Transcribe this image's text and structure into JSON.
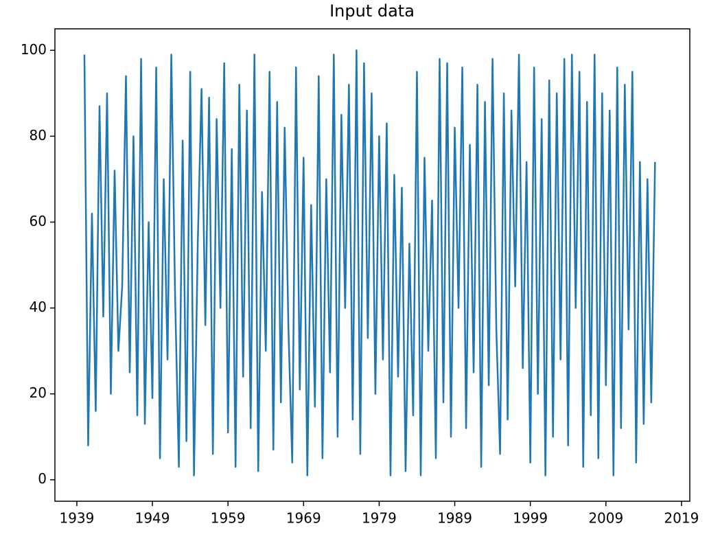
{
  "chart_data": {
    "type": "line",
    "title": "Input data",
    "x": [
      1940,
      1940.5,
      1941,
      1941.5,
      1942,
      1942.5,
      1943,
      1943.5,
      1944,
      1944.5,
      1945,
      1945.5,
      1946,
      1946.5,
      1947,
      1947.5,
      1948,
      1948.5,
      1949,
      1949.5,
      1950,
      1950.5,
      1951,
      1951.5,
      1952,
      1952.5,
      1953,
      1953.5,
      1954,
      1954.5,
      1955,
      1955.5,
      1956,
      1956.5,
      1957,
      1957.5,
      1958,
      1958.5,
      1959,
      1959.5,
      1960,
      1960.5,
      1961,
      1961.5,
      1962,
      1962.5,
      1963,
      1963.5,
      1964,
      1964.5,
      1965,
      1965.5,
      1966,
      1966.5,
      1967,
      1967.5,
      1968,
      1968.5,
      1969,
      1969.5,
      1970,
      1970.5,
      1971,
      1971.5,
      1972,
      1972.5,
      1973,
      1973.5,
      1974,
      1974.5,
      1975,
      1975.5,
      1976,
      1976.5,
      1977,
      1977.5,
      1978,
      1978.5,
      1979,
      1979.5,
      1980,
      1980.5,
      1981,
      1981.5,
      1982,
      1982.5,
      1983,
      1983.5,
      1984,
      1984.5,
      1985,
      1985.5,
      1986,
      1986.5,
      1987,
      1987.5,
      1988,
      1988.5,
      1989,
      1989.5,
      1990,
      1990.5,
      1991,
      1991.5,
      1992,
      1992.5,
      1993,
      1993.5,
      1994,
      1994.5,
      1995,
      1995.5,
      1996,
      1996.5,
      1997,
      1997.5,
      1998,
      1998.5,
      1999,
      1999.5,
      2000,
      2000.5,
      2001,
      2001.5,
      2002,
      2002.5,
      2003,
      2003.5,
      2004,
      2004.5,
      2005,
      2005.5,
      2006,
      2006.5,
      2007,
      2007.5,
      2008,
      2008.5,
      2009,
      2009.5,
      2010,
      2010.5,
      2011,
      2011.5,
      2012,
      2012.5,
      2013,
      2013.5,
      2014,
      2014.5,
      2015,
      2015.5
    ],
    "series": [
      {
        "color": "#1f77b4",
        "values": [
          99,
          8,
          62,
          16,
          87,
          38,
          90,
          20,
          72,
          30,
          45,
          94,
          25,
          80,
          15,
          98,
          13,
          60,
          19,
          96,
          5,
          70,
          28,
          99,
          43,
          3,
          79,
          9,
          95,
          1,
          55,
          91,
          36,
          89,
          6,
          84,
          40,
          97,
          11,
          77,
          3,
          92,
          24,
          86,
          12,
          99,
          2,
          67,
          30,
          95,
          7,
          88,
          18,
          82,
          35,
          4,
          96,
          21,
          75,
          1,
          64,
          17,
          94,
          5,
          70,
          25,
          99,
          10,
          85,
          40,
          92,
          14,
          100,
          6,
          97,
          33,
          90,
          20,
          80,
          28,
          83,
          1,
          71,
          24,
          68,
          2,
          55,
          15,
          95,
          1,
          75,
          30,
          65,
          5,
          98,
          18,
          97,
          10,
          82,
          40,
          96,
          12,
          78,
          25,
          92,
          3,
          88,
          22,
          98,
          35,
          6,
          90,
          14,
          86,
          45,
          99,
          26,
          74,
          4,
          96,
          20,
          84,
          1,
          93,
          10,
          90,
          28,
          98,
          8,
          99,
          40,
          95,
          3,
          88,
          15,
          99,
          5,
          90,
          22,
          86,
          1,
          96,
          12,
          92,
          35,
          95,
          4,
          74,
          13,
          70,
          18,
          74
        ]
      }
    ],
    "xlim": [
      1936.1,
      2020.1
    ],
    "xticks": [
      1939,
      1949,
      1959,
      1969,
      1979,
      1989,
      1999,
      2009,
      2019
    ],
    "ylim": [
      -5,
      105
    ],
    "yticks": [
      0,
      20,
      40,
      60,
      80,
      100
    ]
  }
}
